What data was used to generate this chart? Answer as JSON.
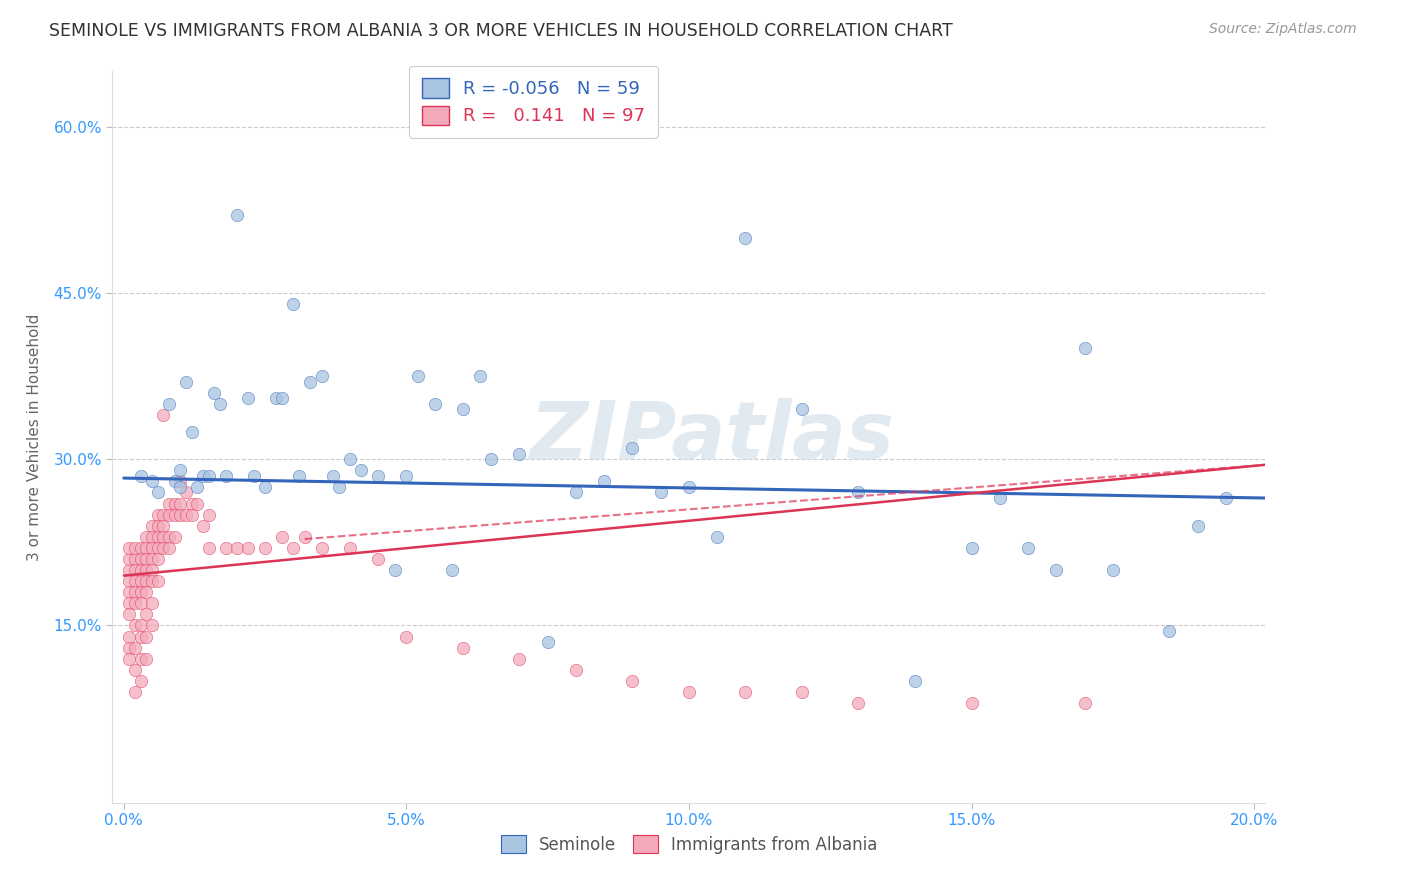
{
  "title": "SEMINOLE VS IMMIGRANTS FROM ALBANIA 3 OR MORE VEHICLES IN HOUSEHOLD CORRELATION CHART",
  "source": "Source: ZipAtlas.com",
  "ylabel": "3 or more Vehicles in Household",
  "xlabel": "",
  "xlim": [
    -0.002,
    0.202
  ],
  "ylim": [
    -0.01,
    0.65
  ],
  "xticks": [
    0.0,
    0.05,
    0.1,
    0.15,
    0.2
  ],
  "yticks": [
    0.15,
    0.3,
    0.45,
    0.6
  ],
  "xtick_labels": [
    "0.0%",
    "5.0%",
    "10.0%",
    "15.0%",
    "20.0%"
  ],
  "ytick_labels": [
    "15.0%",
    "30.0%",
    "45.0%",
    "60.0%"
  ],
  "blue_R": -0.056,
  "blue_N": 59,
  "pink_R": 0.141,
  "pink_N": 97,
  "blue_color": "#A8C4E0",
  "pink_color": "#F4AABB",
  "blue_line_color": "#3366BB",
  "pink_line_color": "#DD3355",
  "watermark": "ZIPatlas",
  "blue_scatter_x": [
    0.003,
    0.005,
    0.006,
    0.008,
    0.009,
    0.01,
    0.01,
    0.011,
    0.012,
    0.013,
    0.014,
    0.015,
    0.016,
    0.017,
    0.018,
    0.02,
    0.022,
    0.023,
    0.025,
    0.027,
    0.028,
    0.03,
    0.031,
    0.033,
    0.035,
    0.037,
    0.038,
    0.04,
    0.042,
    0.045,
    0.048,
    0.05,
    0.052,
    0.055,
    0.058,
    0.06,
    0.063,
    0.065,
    0.07,
    0.075,
    0.08,
    0.085,
    0.09,
    0.095,
    0.1,
    0.105,
    0.11,
    0.12,
    0.13,
    0.14,
    0.15,
    0.155,
    0.16,
    0.165,
    0.17,
    0.175,
    0.185,
    0.19,
    0.195
  ],
  "blue_scatter_y": [
    0.285,
    0.28,
    0.27,
    0.35,
    0.28,
    0.275,
    0.29,
    0.37,
    0.325,
    0.275,
    0.285,
    0.285,
    0.36,
    0.35,
    0.285,
    0.52,
    0.355,
    0.285,
    0.275,
    0.355,
    0.355,
    0.44,
    0.285,
    0.37,
    0.375,
    0.285,
    0.275,
    0.3,
    0.29,
    0.285,
    0.2,
    0.285,
    0.375,
    0.35,
    0.2,
    0.345,
    0.375,
    0.3,
    0.305,
    0.135,
    0.27,
    0.28,
    0.31,
    0.27,
    0.275,
    0.23,
    0.5,
    0.345,
    0.27,
    0.1,
    0.22,
    0.265,
    0.22,
    0.2,
    0.4,
    0.2,
    0.145,
    0.24,
    0.265
  ],
  "pink_scatter_x": [
    0.001,
    0.001,
    0.001,
    0.001,
    0.001,
    0.001,
    0.001,
    0.001,
    0.001,
    0.001,
    0.002,
    0.002,
    0.002,
    0.002,
    0.002,
    0.002,
    0.002,
    0.002,
    0.002,
    0.002,
    0.003,
    0.003,
    0.003,
    0.003,
    0.003,
    0.003,
    0.003,
    0.003,
    0.003,
    0.003,
    0.004,
    0.004,
    0.004,
    0.004,
    0.004,
    0.004,
    0.004,
    0.004,
    0.004,
    0.005,
    0.005,
    0.005,
    0.005,
    0.005,
    0.005,
    0.005,
    0.005,
    0.006,
    0.006,
    0.006,
    0.006,
    0.006,
    0.006,
    0.007,
    0.007,
    0.007,
    0.007,
    0.007,
    0.008,
    0.008,
    0.008,
    0.008,
    0.009,
    0.009,
    0.009,
    0.01,
    0.01,
    0.01,
    0.011,
    0.011,
    0.012,
    0.012,
    0.013,
    0.014,
    0.015,
    0.015,
    0.018,
    0.02,
    0.022,
    0.025,
    0.028,
    0.03,
    0.032,
    0.035,
    0.04,
    0.045,
    0.05,
    0.06,
    0.07,
    0.08,
    0.09,
    0.1,
    0.11,
    0.12,
    0.13,
    0.15,
    0.17
  ],
  "pink_scatter_y": [
    0.2,
    0.21,
    0.22,
    0.19,
    0.18,
    0.17,
    0.16,
    0.14,
    0.13,
    0.12,
    0.21,
    0.22,
    0.2,
    0.19,
    0.18,
    0.17,
    0.15,
    0.13,
    0.11,
    0.09,
    0.22,
    0.21,
    0.2,
    0.19,
    0.18,
    0.17,
    0.15,
    0.14,
    0.12,
    0.1,
    0.23,
    0.22,
    0.21,
    0.2,
    0.19,
    0.18,
    0.16,
    0.14,
    0.12,
    0.24,
    0.23,
    0.22,
    0.21,
    0.2,
    0.19,
    0.17,
    0.15,
    0.25,
    0.24,
    0.23,
    0.22,
    0.21,
    0.19,
    0.34,
    0.25,
    0.24,
    0.23,
    0.22,
    0.26,
    0.25,
    0.23,
    0.22,
    0.26,
    0.25,
    0.23,
    0.28,
    0.26,
    0.25,
    0.27,
    0.25,
    0.26,
    0.25,
    0.26,
    0.24,
    0.25,
    0.22,
    0.22,
    0.22,
    0.22,
    0.22,
    0.23,
    0.22,
    0.23,
    0.22,
    0.22,
    0.21,
    0.14,
    0.13,
    0.12,
    0.11,
    0.1,
    0.09,
    0.09,
    0.09,
    0.08,
    0.08,
    0.08
  ],
  "blue_line_x": [
    0.0,
    0.202
  ],
  "blue_line_y": [
    0.283,
    0.265
  ],
  "pink_line_x": [
    0.0,
    0.202
  ],
  "pink_line_y": [
    0.195,
    0.295
  ],
  "pink_dash_line_x": [
    0.032,
    0.202
  ],
  "pink_dash_line_y": [
    0.228,
    0.295
  ]
}
